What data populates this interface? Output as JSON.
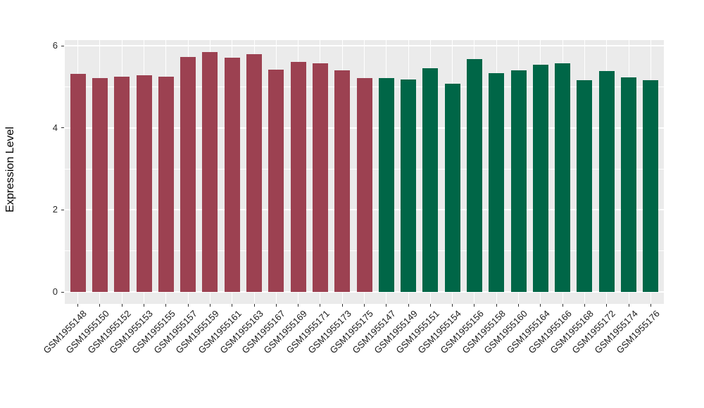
{
  "chart_data": {
    "type": "bar",
    "title": "",
    "xlabel": "",
    "ylabel": "Expression Level",
    "ylim": [
      0,
      6.17
    ],
    "yticks": [
      0,
      2,
      4,
      6
    ],
    "yticks_minor": [
      1,
      3,
      5
    ],
    "grid": "white major+minor horizontal lines and white vertical lines at bar centers on grey panel",
    "legend_position": "none",
    "group_colors": {
      "maroon": "#9C4151",
      "green": "#006647"
    },
    "bars": [
      {
        "label": "GSM1955148",
        "value": 5.31,
        "group": "maroon"
      },
      {
        "label": "GSM1955150",
        "value": 5.21,
        "group": "maroon"
      },
      {
        "label": "GSM1955152",
        "value": 5.25,
        "group": "maroon"
      },
      {
        "label": "GSM1955153",
        "value": 5.28,
        "group": "maroon"
      },
      {
        "label": "GSM1955155",
        "value": 5.24,
        "group": "maroon"
      },
      {
        "label": "GSM1955157",
        "value": 5.73,
        "group": "maroon"
      },
      {
        "label": "GSM1955159",
        "value": 5.85,
        "group": "maroon"
      },
      {
        "label": "GSM1955161",
        "value": 5.71,
        "group": "maroon"
      },
      {
        "label": "GSM1955163",
        "value": 5.8,
        "group": "maroon"
      },
      {
        "label": "GSM1955167",
        "value": 5.41,
        "group": "maroon"
      },
      {
        "label": "GSM1955169",
        "value": 5.61,
        "group": "maroon"
      },
      {
        "label": "GSM1955171",
        "value": 5.57,
        "group": "maroon"
      },
      {
        "label": "GSM1955173",
        "value": 5.4,
        "group": "maroon"
      },
      {
        "label": "GSM1955175",
        "value": 5.22,
        "group": "maroon"
      },
      {
        "label": "GSM1955147",
        "value": 5.22,
        "group": "green"
      },
      {
        "label": "GSM1955149",
        "value": 5.18,
        "group": "green"
      },
      {
        "label": "GSM1955151",
        "value": 5.45,
        "group": "green"
      },
      {
        "label": "GSM1955154",
        "value": 5.08,
        "group": "green"
      },
      {
        "label": "GSM1955156",
        "value": 5.67,
        "group": "green"
      },
      {
        "label": "GSM1955158",
        "value": 5.33,
        "group": "green"
      },
      {
        "label": "GSM1955160",
        "value": 5.4,
        "group": "green"
      },
      {
        "label": "GSM1955164",
        "value": 5.54,
        "group": "green"
      },
      {
        "label": "GSM1955166",
        "value": 5.58,
        "group": "green"
      },
      {
        "label": "GSM1955168",
        "value": 5.16,
        "group": "green"
      },
      {
        "label": "GSM1955172",
        "value": 5.39,
        "group": "green"
      },
      {
        "label": "GSM1955174",
        "value": 5.23,
        "group": "green"
      },
      {
        "label": "GSM1955176",
        "value": 5.16,
        "group": "green"
      }
    ]
  },
  "colors": {
    "figure_bg": "#FFFFFF",
    "panel_bg": "#EBEBEB",
    "gridline": "#FFFFFF",
    "axis_text": "#1A1A1A"
  }
}
